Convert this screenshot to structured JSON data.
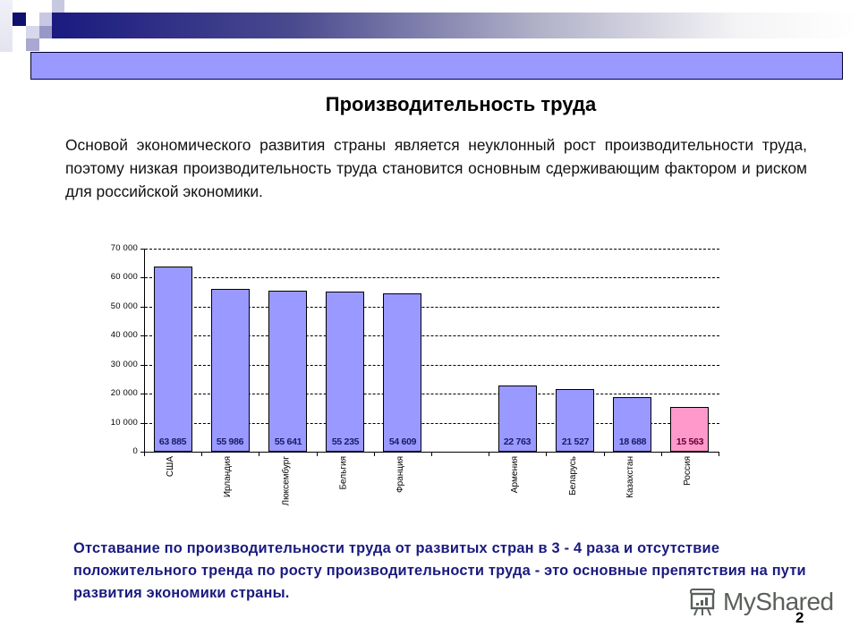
{
  "slide": {
    "title": "Производительность труда",
    "intro": "Основой экономического развития страны является неуклонный рост производительности труда, поэтому низкая производительность труда становится основным сдерживающим фактором и риском для российской экономики.",
    "conclusion": "Отставание по производительности труда от развитых стран в 3 - 4 раза и отсутствие положительного тренда по росту производительности труда  - это основные препятствия на пути развития экономики страны.",
    "watermark": "MyShared",
    "page_number": "2",
    "colors": {
      "banner": "#9999ff",
      "bar": "#9999ff",
      "highlight_bar": "#ff99cc",
      "conclusion_text": "#1a1a80",
      "gradient_start": "#1a1a80"
    }
  },
  "chart_data": {
    "type": "bar",
    "title": "",
    "xlabel": "",
    "ylabel": "",
    "ylim": [
      0,
      70000
    ],
    "yticks": [
      "0",
      "10 000",
      "20 000",
      "30 000",
      "40 000",
      "50 000",
      "60 000",
      "70 000"
    ],
    "grid": "horizontal dashed",
    "legend": "none",
    "categories": [
      "США",
      "Ирландия",
      "Люксембург",
      "Бельгия",
      "Франция",
      "",
      "Армения",
      "Беларусь",
      "Казахстан",
      "Россия"
    ],
    "values": [
      63885,
      55986,
      55641,
      55235,
      54609,
      null,
      22763,
      21527,
      18688,
      15563
    ],
    "data_labels": [
      "63 885",
      "55 986",
      "55 641",
      "55 235",
      "54 609",
      "",
      "22 763",
      "21 527",
      "18 688",
      "15 563"
    ],
    "highlighted_category": "Россия"
  }
}
